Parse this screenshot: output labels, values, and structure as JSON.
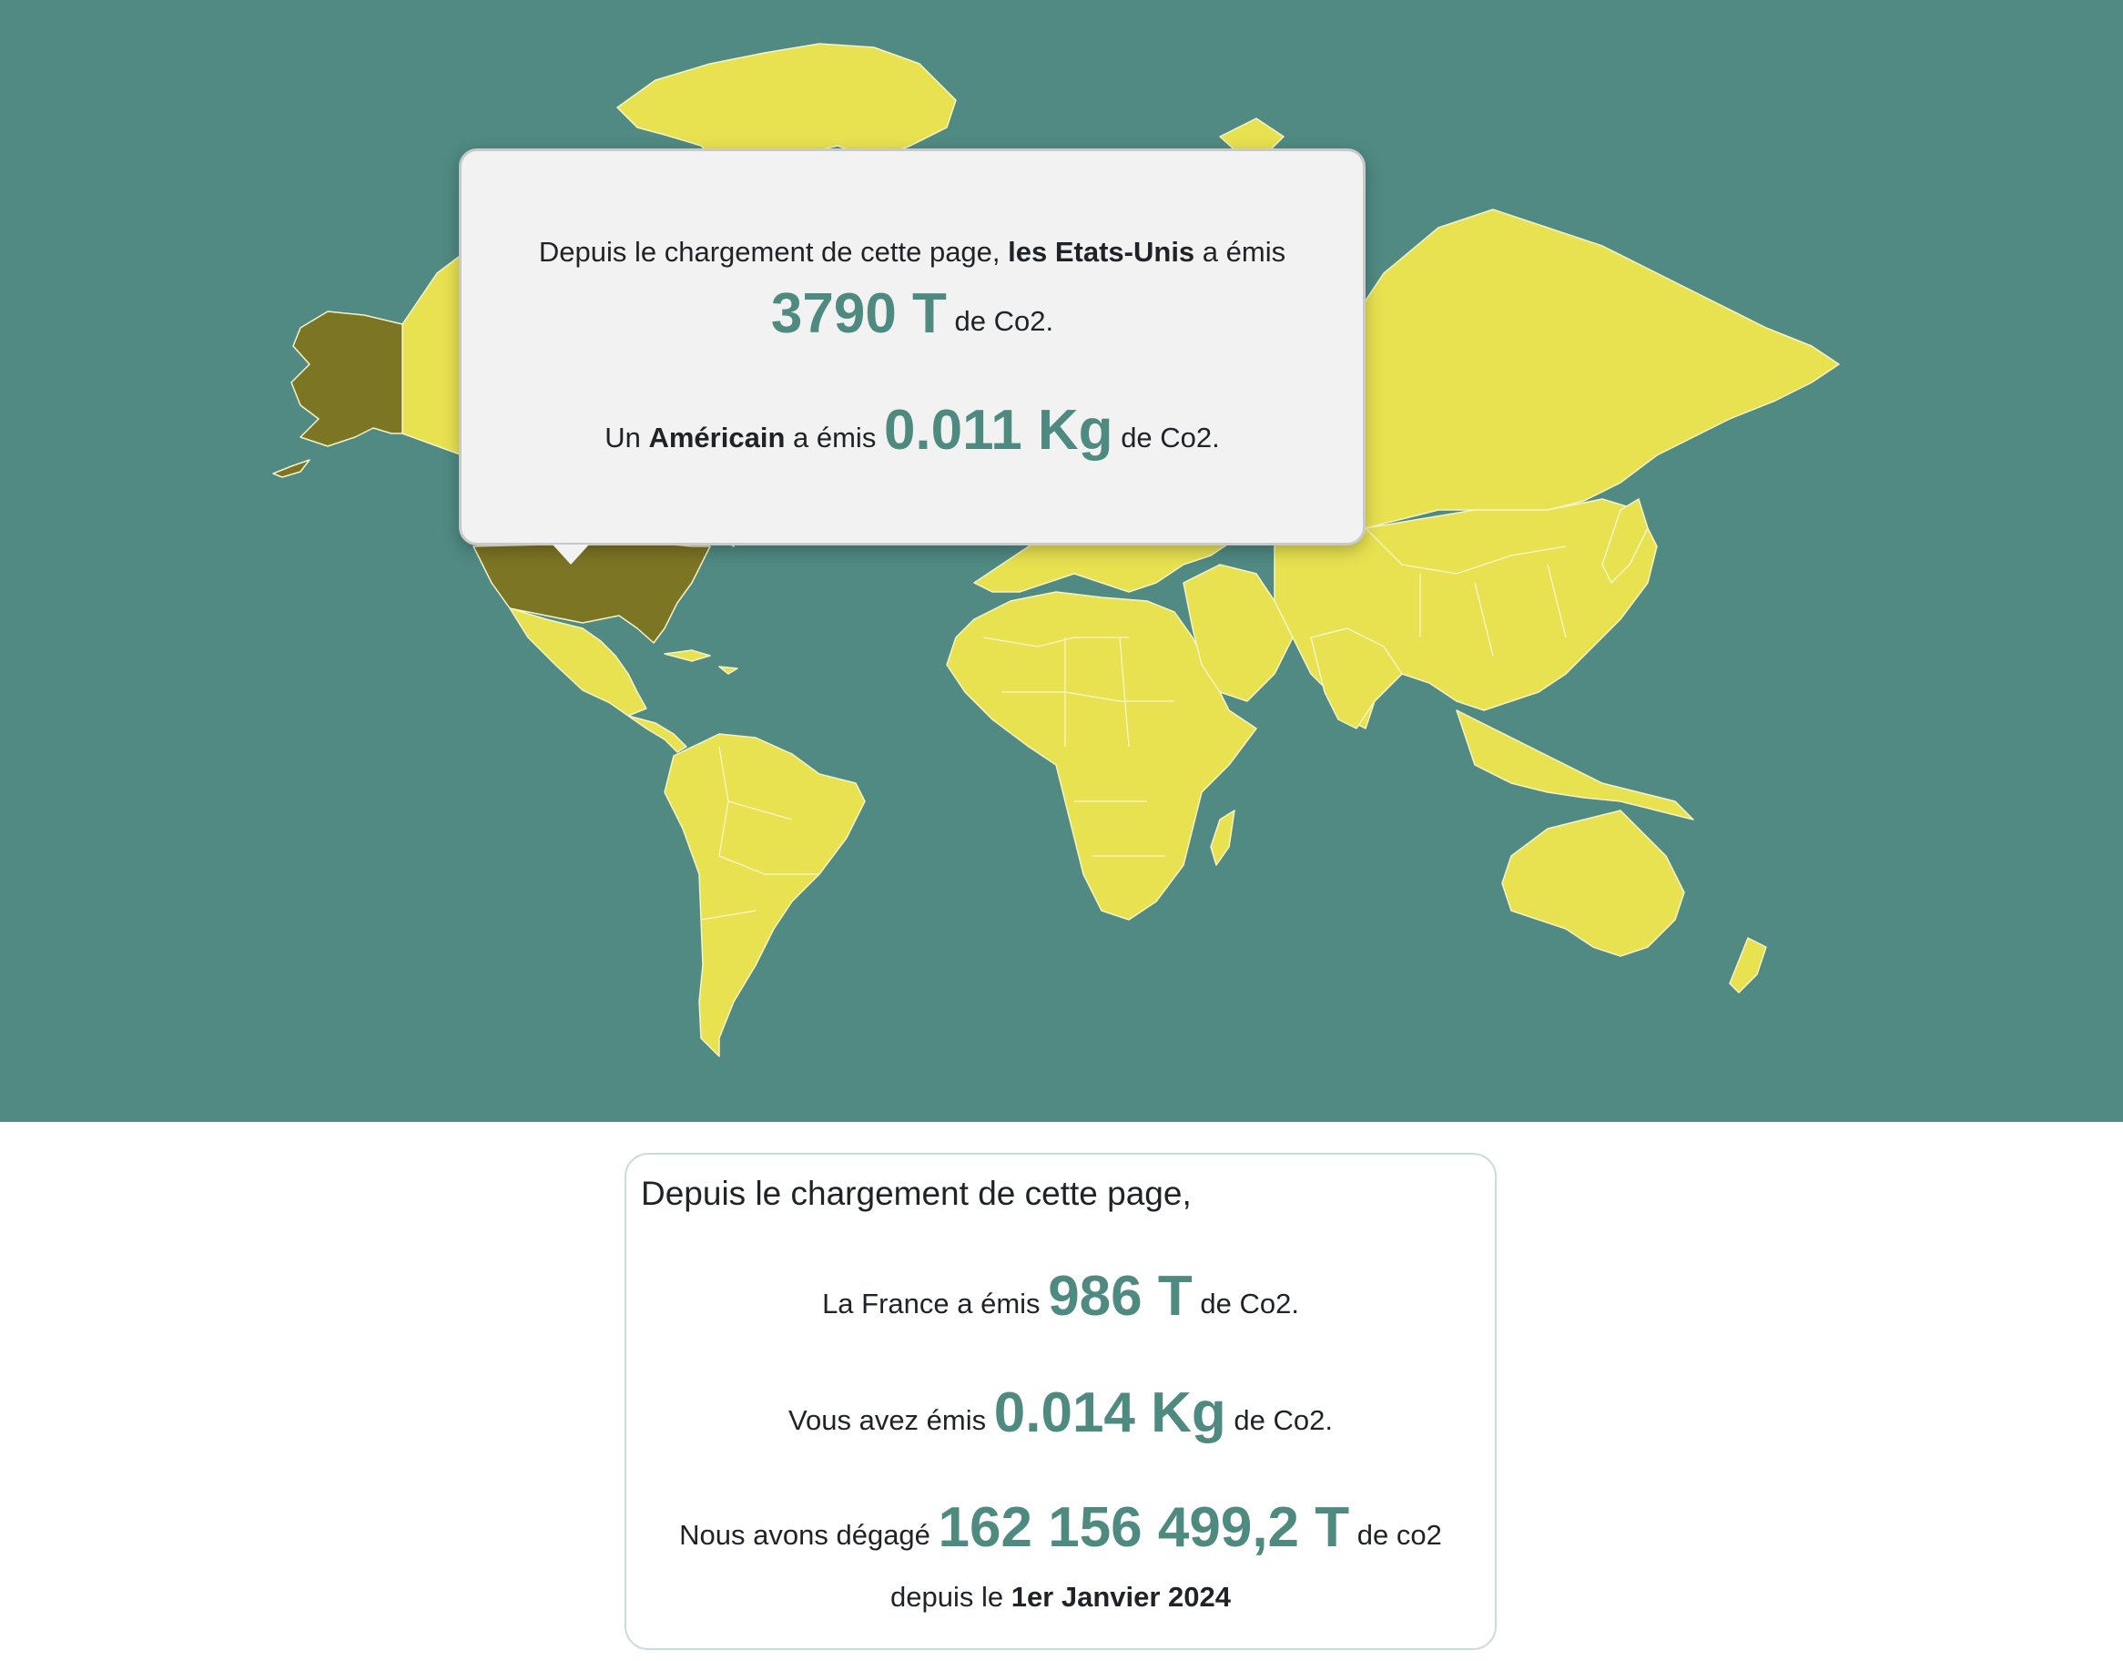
{
  "colors": {
    "ocean": "#508a83",
    "land": "#e8e250",
    "highlight_country": "#7c7524",
    "accent_value": "#4f8a81",
    "tooltip_bg": "#f2f2f2"
  },
  "map": {
    "highlighted_country": "Etats-Unis"
  },
  "tooltip": {
    "intro": "Depuis le chargement de cette page,",
    "country": "les Etats-Unis",
    "verb": "a émis",
    "country_value": "3790 T",
    "unit_suffix": "de Co2.",
    "person_prefix": "Un",
    "person": "Américain",
    "person_verb": "a émis",
    "person_value": "0.011 Kg",
    "person_suffix": "de Co2."
  },
  "summary": {
    "title": "Depuis le chargement de cette page,",
    "france_prefix": "La France a émis",
    "france_value": "986 T",
    "france_suffix": "de Co2.",
    "you_prefix": "Vous avez émis",
    "you_value": "0.014 Kg",
    "you_suffix": "de Co2.",
    "total_prefix": "Nous avons dégagé",
    "total_value": "162 156 499,2 T",
    "total_suffix": "de co2",
    "since_prefix": "depuis le",
    "since_date": "1er Janvier 2024"
  }
}
